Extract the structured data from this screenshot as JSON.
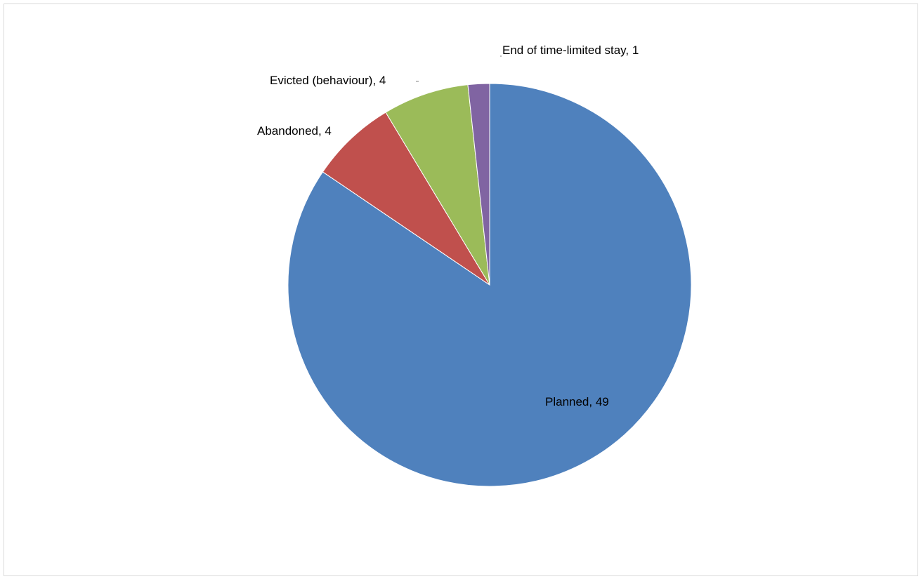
{
  "chart_data": {
    "type": "pie",
    "title": "",
    "slices": [
      {
        "label": "Planned",
        "value": 49,
        "color": "#4F81BD",
        "data_label": "Planned, 49"
      },
      {
        "label": "Abandoned",
        "value": 4,
        "color": "#C0504D",
        "data_label": "Abandoned, 4"
      },
      {
        "label": "Evicted (behaviour)",
        "value": 4,
        "color": "#9BBB59",
        "data_label": "Evicted (behaviour), 4"
      },
      {
        "label": "End of time-limited stay",
        "value": 1,
        "color": "#8064A2",
        "data_label": "End of time-limited stay, 1"
      }
    ],
    "start_angle_deg": 0,
    "direction": "clockwise",
    "legend": "none"
  }
}
